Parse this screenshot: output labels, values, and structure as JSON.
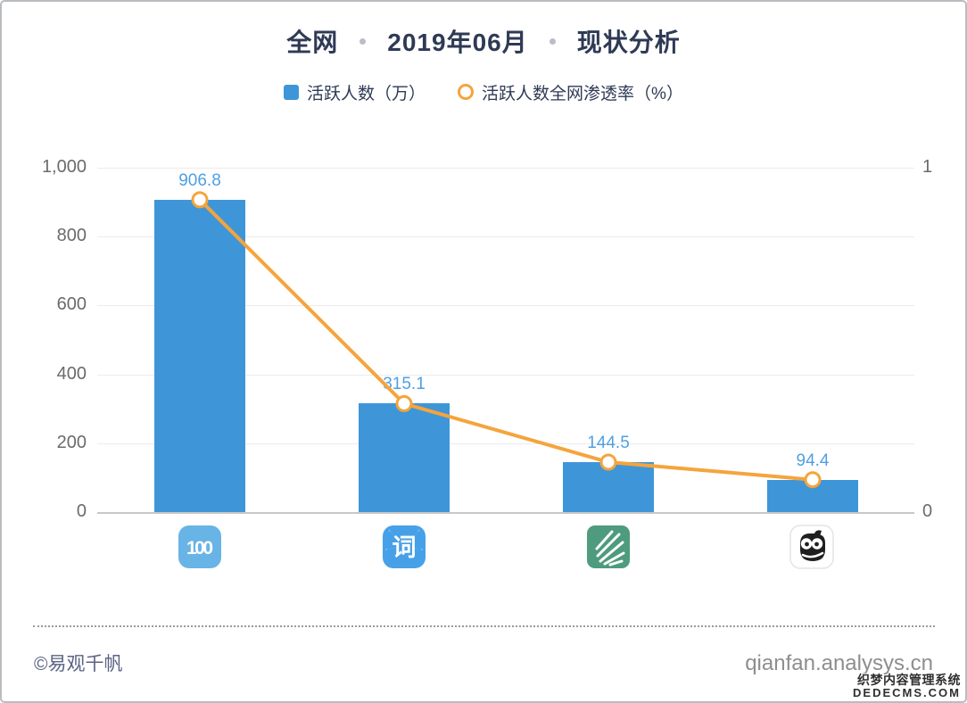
{
  "title": {
    "part1": "全网",
    "part2": "2019年06月",
    "part3": "现状分析"
  },
  "legend": {
    "bar_label": "活跃人数（万）",
    "line_label": "活跃人数全网渗透率（%）"
  },
  "colors": {
    "bar": "#3e96d8",
    "bar_value_label": "#4f9fe3",
    "line": "#f5a43c",
    "title": "#2e3a55",
    "axis_text": "#6b6b6b"
  },
  "chart_data": {
    "type": "bar",
    "subtype": "bar+line combo",
    "categories": [
      "app-icon-blue-100",
      "app-icon-blue-ci",
      "app-icon-green-leaf",
      "app-icon-owl"
    ],
    "series": [
      {
        "name": "活跃人数（万）",
        "type": "bar",
        "axis": "left",
        "color": "#3e96d8",
        "values": [
          906.8,
          315.1,
          144.5,
          94.4
        ]
      },
      {
        "name": "活跃人数全网渗透率（%）",
        "type": "line",
        "axis": "right",
        "color": "#f5a43c",
        "values": [
          0.907,
          0.315,
          0.145,
          0.094
        ]
      }
    ],
    "bar_labels": [
      "906.8",
      "315.1",
      "144.5",
      "94.4"
    ],
    "title": "全网 · 2019年06月 · 现状分析",
    "xlabel": "",
    "ylabel_left": "活跃人数（万）",
    "ylabel_right": "活跃人数全网渗透率（%）",
    "y_axis_left": {
      "ticks": [
        "1,000",
        "800",
        "600",
        "400",
        "200",
        "0"
      ],
      "min": 0,
      "max": 1000
    },
    "y_axis_right": {
      "ticks": [
        "1",
        "0"
      ],
      "min": 0,
      "max": 1
    },
    "grid": true,
    "legend_position": "top"
  },
  "footer": {
    "copyright": "©易观千帆",
    "site": "qianfan.analysys.cn"
  },
  "watermark": {
    "line1": "织梦内容管理系统",
    "line2": "DEDECMS.COM"
  }
}
